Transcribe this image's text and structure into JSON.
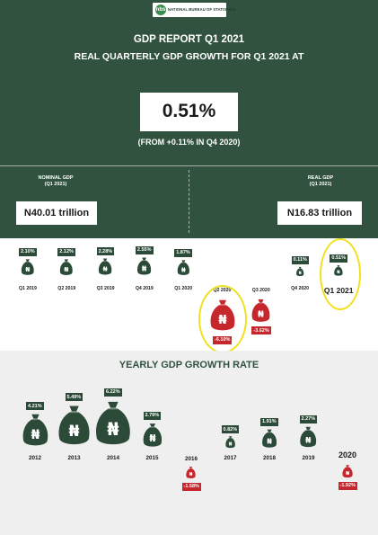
{
  "header": {
    "logo_mark": "nbs",
    "logo_text": "NATIONAL BUREAU OF STATISTICS",
    "title": "GDP REPORT Q1 2021",
    "subtitle": "REAL QUARTERLY GDP GROWTH FOR Q1 2021 AT",
    "headline_value": "0.51%",
    "headline_note": "(FROM +0.11% IN Q4 2020)"
  },
  "nominal": {
    "label": "NOMINAL GDP",
    "period": "(Q1 2021)",
    "value": "N40.01 trillion"
  },
  "real": {
    "label": "REAL GDP",
    "period": "(Q1 2021)",
    "value": "N16.83 trillion"
  },
  "currency_symbol": "₦",
  "colors": {
    "dark_green": "#30523f",
    "bag_green": "#2c4a38",
    "red": "#c5272d",
    "highlight": "#f2e01f"
  },
  "quarterly": [
    {
      "label": "Q1 2019",
      "value": "2.10%",
      "growth": 2.1
    },
    {
      "label": "Q2 2019",
      "value": "2.12%",
      "growth": 2.12
    },
    {
      "label": "Q3 2019",
      "value": "2.28%",
      "growth": 2.28
    },
    {
      "label": "Q4 2019",
      "value": "2.55%",
      "growth": 2.55
    },
    {
      "label": "Q1 2020",
      "value": "1.87%",
      "growth": 1.87
    },
    {
      "label": "Q2 2020",
      "value": "-6.10%",
      "growth": -6.1,
      "highlight": true
    },
    {
      "label": "Q3 2020",
      "value": "-3.62%",
      "growth": -3.62
    },
    {
      "label": "Q4 2020",
      "value": "0.11%",
      "growth": 0.11
    },
    {
      "label": "Q1 2021",
      "value": "0.51%",
      "growth": 0.51,
      "highlight": true
    }
  ],
  "yearly": {
    "title": "YEARLY GDP GROWTH RATE",
    "items": [
      {
        "label": "2012",
        "value": "4.21%",
        "growth": 4.21
      },
      {
        "label": "2013",
        "value": "5.49%",
        "growth": 5.49
      },
      {
        "label": "2014",
        "value": "6.22%",
        "growth": 6.22
      },
      {
        "label": "2015",
        "value": "2.79%",
        "growth": 2.79
      },
      {
        "label": "2016",
        "value": "-1.58%",
        "growth": -1.58
      },
      {
        "label": "2017",
        "value": "0.82%",
        "growth": 0.82
      },
      {
        "label": "2018",
        "value": "1.91%",
        "growth": 1.91
      },
      {
        "label": "2019",
        "value": "2.27%",
        "growth": 2.27
      },
      {
        "label": "2020",
        "value": "-1.92%",
        "growth": -1.92
      }
    ]
  }
}
